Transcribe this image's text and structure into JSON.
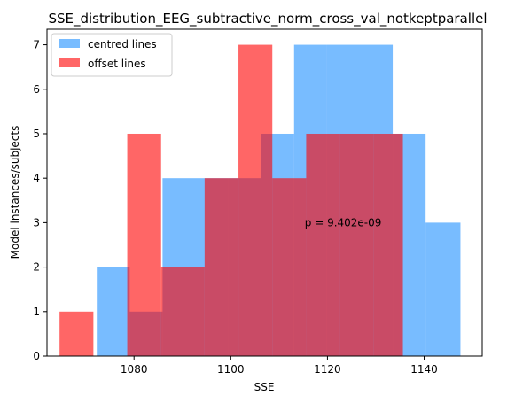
{
  "chart_data": {
    "type": "bar",
    "subtype": "overlapping-histogram",
    "title": "SSE_distribution_EEG_subtractive_norm_cross_val_notkeptparallel",
    "xlabel": "SSE",
    "ylabel": "Model instances/subjects",
    "xlim": [
      1062,
      1152
    ],
    "ylim": [
      0,
      7.35
    ],
    "xticks": [
      1080,
      1100,
      1120,
      1140
    ],
    "yticks": [
      0,
      1,
      2,
      3,
      4,
      5,
      6,
      7
    ],
    "legend_position": "top-left",
    "annotation": "p = 9.402e-09",
    "annotation_at": {
      "x": 1115.3,
      "y": 3.0
    },
    "series": [
      {
        "name": "centred lines",
        "color": "#1e90ff",
        "alpha": 0.6,
        "bins": [
          {
            "x0": 1064.6,
            "x1": 1072.3,
            "count": 0
          },
          {
            "x0": 1072.3,
            "x1": 1079.1,
            "count": 2
          },
          {
            "x0": 1079.1,
            "x1": 1085.9,
            "count": 1
          },
          {
            "x0": 1085.9,
            "x1": 1092.7,
            "count": 4
          },
          {
            "x0": 1092.7,
            "x1": 1099.5,
            "count": 4
          },
          {
            "x0": 1099.5,
            "x1": 1106.3,
            "count": 4
          },
          {
            "x0": 1106.3,
            "x1": 1113.1,
            "count": 5
          },
          {
            "x0": 1113.1,
            "x1": 1119.9,
            "count": 7
          },
          {
            "x0": 1119.9,
            "x1": 1126.7,
            "count": 7
          },
          {
            "x0": 1126.7,
            "x1": 1133.5,
            "count": 7
          },
          {
            "x0": 1133.5,
            "x1": 1140.3,
            "count": 5
          },
          {
            "x0": 1140.3,
            "x1": 1147.5,
            "count": 3
          }
        ]
      },
      {
        "name": "offset lines",
        "color": "#ff0000",
        "alpha": 0.6,
        "bins": [
          {
            "x0": 1064.6,
            "x1": 1071.6,
            "count": 1
          },
          {
            "x0": 1071.6,
            "x1": 1078.6,
            "count": 0
          },
          {
            "x0": 1078.6,
            "x1": 1085.6,
            "count": 5
          },
          {
            "x0": 1085.6,
            "x1": 1094.6,
            "count": 2
          },
          {
            "x0": 1094.6,
            "x1": 1101.6,
            "count": 4
          },
          {
            "x0": 1101.6,
            "x1": 1108.6,
            "count": 7
          },
          {
            "x0": 1108.6,
            "x1": 1115.6,
            "count": 4
          },
          {
            "x0": 1115.6,
            "x1": 1122.6,
            "count": 5
          },
          {
            "x0": 1122.6,
            "x1": 1129.6,
            "count": 5
          },
          {
            "x0": 1129.6,
            "x1": 1135.6,
            "count": 5
          }
        ]
      }
    ]
  }
}
